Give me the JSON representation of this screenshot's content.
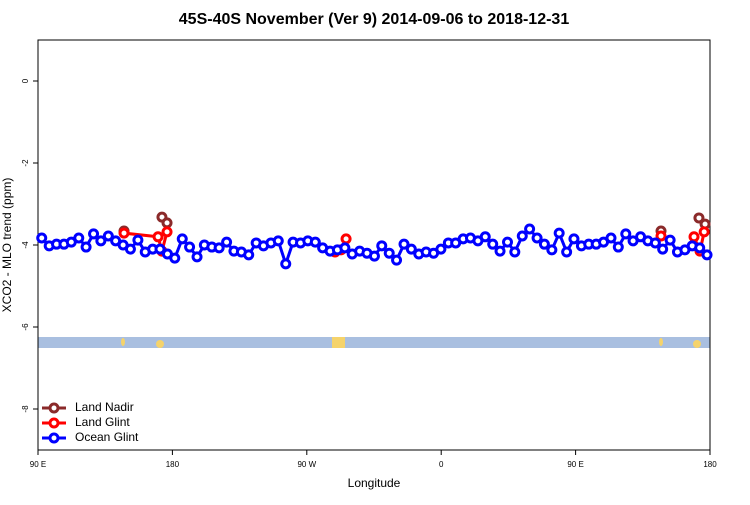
{
  "chart_data": {
    "type": "line",
    "title": "45S-40S November (Ver 9)   2014-09-06 to 2018-12-31",
    "xlabel": "Longitude",
    "ylabel": "XCO2 - MLO trend (ppm)",
    "xlim": [
      90,
      540
    ],
    "ylim": [
      -9,
      1
    ],
    "xticks": [
      {
        "value": 90,
        "label": "90 E"
      },
      {
        "value": 180,
        "label": "180"
      },
      {
        "value": 270,
        "label": "90 W"
      },
      {
        "value": 360,
        "label": "0"
      },
      {
        "value": 450,
        "label": "90 E"
      },
      {
        "value": 540,
        "label": "180"
      }
    ],
    "yticks": [
      0,
      -2,
      -4,
      -6,
      -8
    ],
    "legend": "bottom-left",
    "series": [
      {
        "name": "Land Nadir",
        "color": "#8b2a2a",
        "x": [
          147.6,
          null,
          173.0,
          176.4,
          null,
          507.2,
          null,
          532.6,
          536.7
        ],
        "values": [
          -3.66,
          null,
          -3.32,
          -3.46,
          null,
          -3.66,
          null,
          -3.34,
          -3.49
        ]
      },
      {
        "name": "Land Glint",
        "color": "#ff0000",
        "x": [
          147.6,
          170.4,
          173.0,
          176.4,
          null,
          288.9,
          292.9,
          296.3,
          null,
          507.2,
          null,
          529.3,
          533.3,
          536.1
        ],
        "values": [
          -3.71,
          -3.8,
          -4.15,
          -3.68,
          null,
          -4.17,
          -4.12,
          -3.85,
          null,
          -3.78,
          null,
          -3.8,
          -4.15,
          -3.68
        ]
      },
      {
        "name": "Ocean Glint",
        "color": "#0000ff",
        "x": [
          92.5,
          97.5,
          102.4,
          107.4,
          112.3,
          117.3,
          122.2,
          127.2,
          132.1,
          137.1,
          142.0,
          147.0,
          151.9,
          156.9,
          161.8,
          166.8,
          171.7,
          176.7,
          181.6,
          186.6,
          191.5,
          196.5,
          201.4,
          206.4,
          211.3,
          216.3,
          221.2,
          226.2,
          231.1,
          236.1,
          241.0,
          246.0,
          250.9,
          255.9,
          260.8,
          265.8,
          270.7,
          275.7,
          280.6,
          285.6,
          290.5,
          295.5,
          300.4,
          305.4,
          310.3,
          315.3,
          320.2,
          325.2,
          330.1,
          335.1,
          340.0,
          345.0,
          349.9,
          354.9,
          359.8,
          364.8,
          369.7,
          374.7,
          379.6,
          384.6,
          389.5,
          394.5,
          399.4,
          404.4,
          409.3,
          414.3,
          419.2,
          424.2,
          429.1,
          434.1,
          439.0,
          444.0,
          448.9,
          453.9,
          458.8,
          463.8,
          468.7,
          473.7,
          478.6,
          483.6,
          488.5,
          493.5,
          498.4,
          503.4,
          508.3,
          513.3,
          518.2,
          523.2,
          528.1,
          533.1,
          538.0
        ],
        "values": [
          -3.83,
          -4.02,
          -3.98,
          -3.98,
          -3.93,
          -3.83,
          -4.05,
          -3.73,
          -3.9,
          -3.78,
          -3.9,
          -4.0,
          -4.1,
          -3.88,
          -4.17,
          -4.1,
          -4.1,
          -4.22,
          -4.32,
          -3.85,
          -4.05,
          -4.29,
          -4.0,
          -4.05,
          -4.07,
          -3.93,
          -4.15,
          -4.17,
          -4.24,
          -3.95,
          -4.02,
          -3.95,
          -3.9,
          -4.46,
          -3.93,
          -3.95,
          -3.9,
          -3.93,
          -4.07,
          -4.15,
          -4.12,
          -4.07,
          -4.22,
          -4.15,
          -4.2,
          -4.27,
          -4.02,
          -4.2,
          -4.37,
          -3.98,
          -4.1,
          -4.22,
          -4.17,
          -4.2,
          -4.1,
          -3.95,
          -3.95,
          -3.85,
          -3.83,
          -3.9,
          -3.8,
          -3.98,
          -4.15,
          -3.93,
          -4.17,
          -3.78,
          -3.61,
          -3.83,
          -3.98,
          -4.12,
          -3.71,
          -4.17,
          -3.85,
          -4.02,
          -3.98,
          -3.98,
          -3.93,
          -3.83,
          -4.05,
          -3.73,
          -3.9,
          -3.8,
          -3.9,
          -3.95,
          -4.1,
          -3.88,
          -4.17,
          -4.12,
          -4.02,
          -4.07,
          -4.24
        ]
      }
    ]
  }
}
